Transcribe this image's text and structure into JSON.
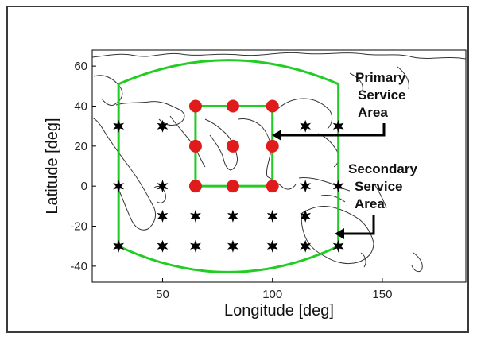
{
  "chart_data": {
    "type": "scatter",
    "title": "",
    "xlabel": "Longitude [deg]",
    "ylabel": "Latitude [deg]",
    "xlim": [
      18,
      188
    ],
    "ylim": [
      -48,
      68
    ],
    "xticks": [
      50,
      100,
      150
    ],
    "yticks": [
      -40,
      -20,
      0,
      20,
      40,
      60
    ],
    "grid": false,
    "series": [
      {
        "marker": "star",
        "color": "#000000",
        "points": [
          [
            30,
            30
          ],
          [
            50,
            30
          ],
          [
            115,
            30
          ],
          [
            130,
            30
          ],
          [
            30,
            0
          ],
          [
            50,
            0
          ],
          [
            115,
            0
          ],
          [
            130,
            0
          ],
          [
            50,
            -15
          ],
          [
            65,
            -15
          ],
          [
            82,
            -15
          ],
          [
            100,
            -15
          ],
          [
            115,
            -15
          ],
          [
            30,
            -30
          ],
          [
            50,
            -30
          ],
          [
            65,
            -30
          ],
          [
            82,
            -30
          ],
          [
            100,
            -30
          ],
          [
            115,
            -30
          ],
          [
            130,
            -30
          ]
        ]
      },
      {
        "marker": "circle",
        "color": "#e01b1b",
        "points": [
          [
            65,
            40
          ],
          [
            82,
            40
          ],
          [
            100,
            40
          ],
          [
            65,
            20
          ],
          [
            82,
            20
          ],
          [
            100,
            20
          ],
          [
            65,
            0
          ],
          [
            82,
            0
          ],
          [
            100,
            0
          ]
        ]
      }
    ],
    "primary_area": {
      "lon": [
        65,
        100
      ],
      "lat": [
        0,
        40
      ],
      "color": "#22cc22"
    },
    "secondary_area": {
      "lon": [
        30,
        130
      ],
      "lat_top_edge": 51,
      "lat_top_mid": 63,
      "lat_bottom_edge": -30,
      "lat_bottom_mid": -43,
      "color": "#22cc22"
    },
    "annotations": [
      {
        "text": "Primary\nService\nArea",
        "arrow_to": [
          100,
          22
        ]
      },
      {
        "text": "Secondary\nService\nArea",
        "arrow_to": [
          132,
          -27
        ]
      }
    ]
  }
}
